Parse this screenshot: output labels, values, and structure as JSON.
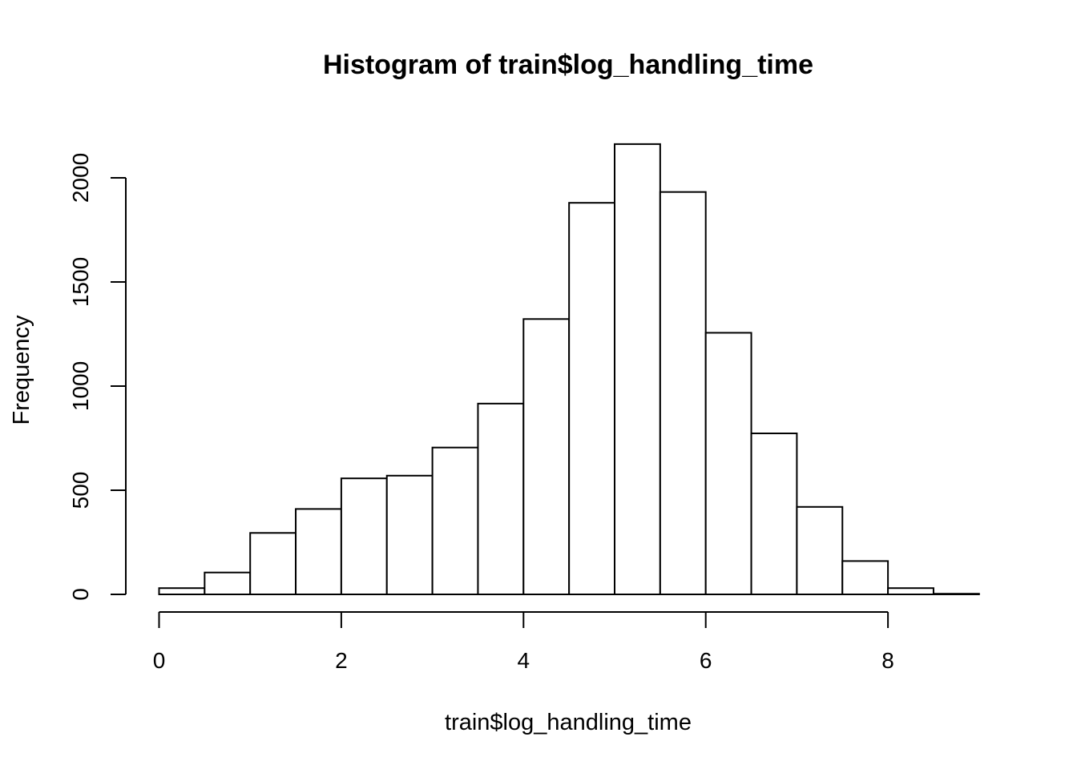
{
  "chart_data": {
    "type": "bar",
    "title": "Histogram of train$log_handling_time",
    "xlabel": "train$log_handling_time",
    "ylabel": "Frequency",
    "bins": [
      {
        "x0": 0.0,
        "x1": 0.5,
        "count": 30
      },
      {
        "x0": 0.5,
        "x1": 1.0,
        "count": 105
      },
      {
        "x0": 1.0,
        "x1": 1.5,
        "count": 295
      },
      {
        "x0": 1.5,
        "x1": 2.0,
        "count": 410
      },
      {
        "x0": 2.0,
        "x1": 2.5,
        "count": 557
      },
      {
        "x0": 2.5,
        "x1": 3.0,
        "count": 570
      },
      {
        "x0": 3.0,
        "x1": 3.5,
        "count": 705
      },
      {
        "x0": 3.5,
        "x1": 4.0,
        "count": 916
      },
      {
        "x0": 4.0,
        "x1": 4.5,
        "count": 1322
      },
      {
        "x0": 4.5,
        "x1": 5.0,
        "count": 1880
      },
      {
        "x0": 5.0,
        "x1": 5.5,
        "count": 2162
      },
      {
        "x0": 5.5,
        "x1": 6.0,
        "count": 1932
      },
      {
        "x0": 6.0,
        "x1": 6.5,
        "count": 1256
      },
      {
        "x0": 6.5,
        "x1": 7.0,
        "count": 773
      },
      {
        "x0": 7.0,
        "x1": 7.5,
        "count": 420
      },
      {
        "x0": 7.5,
        "x1": 8.0,
        "count": 160
      },
      {
        "x0": 8.0,
        "x1": 8.5,
        "count": 30
      },
      {
        "x0": 8.5,
        "x1": 9.0,
        "count": 3
      }
    ],
    "x_ticks": [
      0,
      2,
      4,
      6,
      8
    ],
    "y_ticks": [
      0,
      500,
      1000,
      1500,
      2000
    ],
    "xlim": [
      0,
      9
    ],
    "ylim": [
      0,
      2200
    ],
    "grid": false,
    "bar_fill": "#ffffff",
    "bar_stroke": "#000000"
  }
}
